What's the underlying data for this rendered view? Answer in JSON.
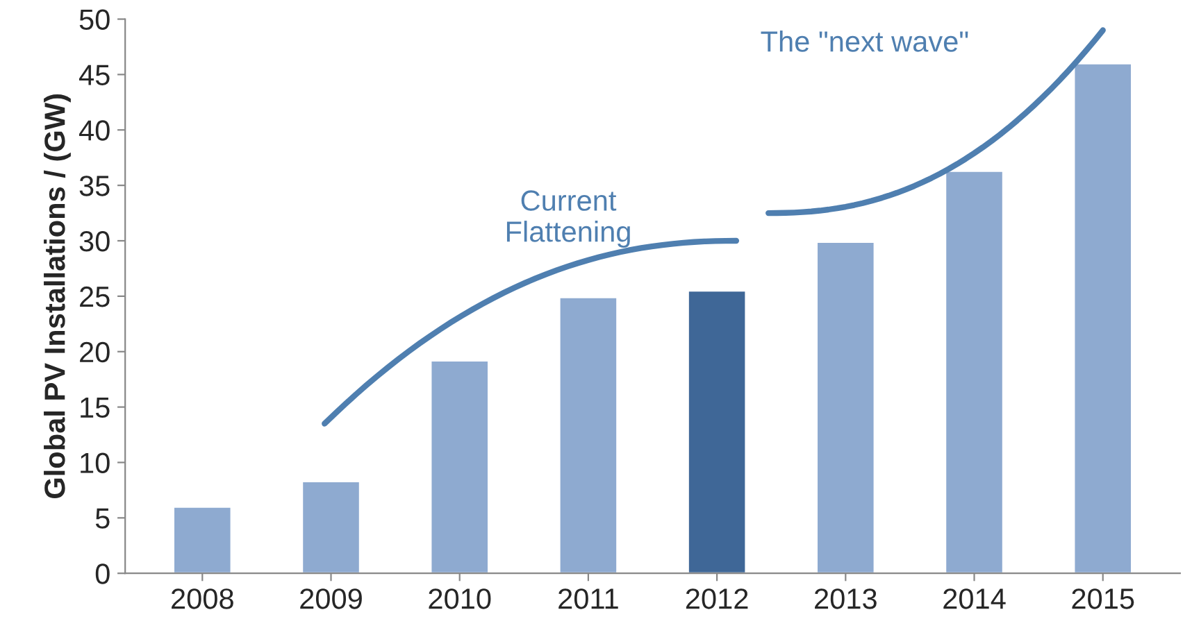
{
  "chart_data": {
    "type": "bar",
    "ylabel": "Global PV Installations / (GW)",
    "categories": [
      "2008",
      "2009",
      "2010",
      "2011",
      "2012",
      "2013",
      "2014",
      "2015"
    ],
    "values": [
      6,
      8.3,
      19.2,
      24.9,
      25.5,
      29.9,
      36.3,
      46
    ],
    "colors": [
      "#8eaad0",
      "#8eaad0",
      "#8eaad0",
      "#8eaad0",
      "#3f6797",
      "#8eaad0",
      "#8eaad0",
      "#8eaad0"
    ],
    "ylim": [
      0,
      50
    ],
    "yticks": [
      0,
      5,
      10,
      15,
      20,
      25,
      30,
      35,
      40,
      45,
      50
    ],
    "grid": false,
    "annotations": [
      "Current\nFlattening",
      "The \"next wave\""
    ]
  }
}
